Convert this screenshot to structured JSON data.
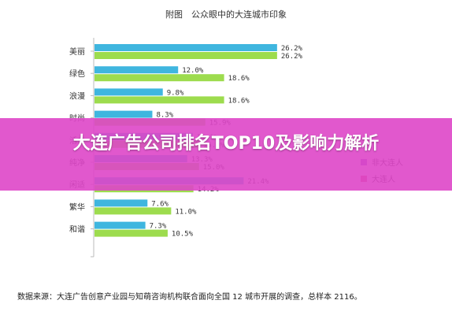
{
  "banner": {
    "title": "大连广告公司排名TOP10及影响力解析"
  },
  "source": "数据来源：大连广告创意产业园与知萌咨询机构联合面向全国 12 城市开展的调查，总样本 2116。",
  "colors": {
    "non_dalian": "#3fb6df",
    "dalian": "#9ddc4e",
    "axis": "#bbbbbb",
    "label": "#333333"
  },
  "chart_data": {
    "type": "bar",
    "orientation": "horizontal",
    "title": "附图　公众眼中的大连城市印象",
    "categories": [
      "美丽",
      "绿色",
      "浪漫",
      "时尚",
      "活力",
      "纯净",
      "闲适",
      "繁华",
      "和谐"
    ],
    "series": [
      {
        "name": "非大连人",
        "values": [
          26.2,
          12.0,
          9.8,
          8.3,
          14.1,
          13.3,
          21.4,
          7.6,
          7.3
        ],
        "labels": [
          "26.2%",
          "12.0%",
          "9.8%",
          "8.3%",
          "14.1%",
          "13.3%",
          "21.4%",
          "7.6%",
          "7.3%"
        ]
      },
      {
        "name": "大连人",
        "values": [
          26.2,
          18.6,
          18.6,
          15.9,
          15.0,
          15.0,
          14.2,
          11.0,
          10.5
        ],
        "labels": [
          "26.2%",
          "18.6%",
          "18.6%",
          "15.9%",
          "15.0%",
          "15.0%",
          "14.2%",
          "11.0%",
          "10.5%"
        ]
      }
    ],
    "legend": {
      "position": "right"
    },
    "grid": false
  }
}
